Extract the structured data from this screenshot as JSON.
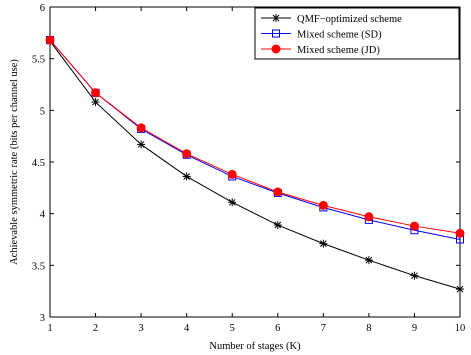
{
  "chart_data": {
    "type": "line",
    "title": "",
    "xlabel": "Number of stages (K)",
    "ylabel": "Achievable symmetric rate (bits per channel use)",
    "xlim": [
      1,
      10
    ],
    "ylim": [
      3,
      6
    ],
    "x": [
      1,
      2,
      3,
      4,
      5,
      6,
      7,
      8,
      9,
      10
    ],
    "xticks": [
      "1",
      "2",
      "3",
      "4",
      "5",
      "6",
      "7",
      "8",
      "9",
      "10"
    ],
    "yticks": [
      "3",
      "3.5",
      "4",
      "4.5",
      "5",
      "5.5",
      "6"
    ],
    "grid": false,
    "legend_position": "top-right",
    "series": [
      {
        "name": "QMF−optimized scheme",
        "color": "#000000",
        "marker": "asterisk",
        "values": [
          5.67,
          5.08,
          4.67,
          4.36,
          4.11,
          3.89,
          3.71,
          3.55,
          3.4,
          3.27
        ]
      },
      {
        "name": "Mixed scheme (SD)",
        "color": "#0000ff",
        "marker": "square",
        "values": [
          5.68,
          5.17,
          4.82,
          4.57,
          4.36,
          4.2,
          4.06,
          3.94,
          3.84,
          3.75
        ]
      },
      {
        "name": "Mixed scheme (JD)",
        "color": "#ff0000",
        "marker": "circle",
        "values": [
          5.68,
          5.17,
          4.83,
          4.58,
          4.38,
          4.21,
          4.08,
          3.97,
          3.88,
          3.81
        ]
      }
    ]
  }
}
